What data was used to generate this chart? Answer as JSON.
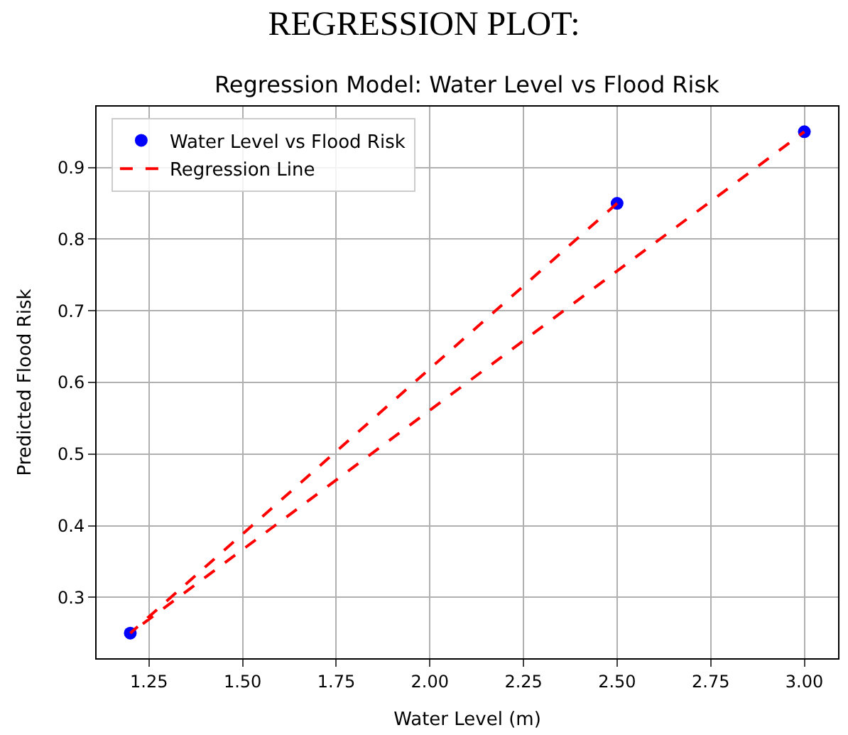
{
  "chart_data": {
    "type": "scatter",
    "title": "REGRESSION PLOT:",
    "subtitle": "Regression Model: Water Level vs Flood Risk",
    "xlabel": "Water Level (m)",
    "ylabel": "Predicted Flood Risk",
    "series": [
      {
        "name": "Water Level vs Flood Risk",
        "color": "#0000ff",
        "marker": "circle",
        "x": [
          1.2,
          2.5,
          3.0
        ],
        "values": [
          0.25,
          0.85,
          0.95
        ]
      },
      {
        "name": "Regression Line",
        "type": "line",
        "color": "#ff0000",
        "line_style": "dashed",
        "x": [
          2.5,
          1.2,
          3.0
        ],
        "values": [
          0.85,
          0.25,
          0.95
        ]
      }
    ],
    "xlim": [
      1.11,
      3.09
    ],
    "xticks": [
      {
        "value": 1.25,
        "label": "1.25"
      },
      {
        "value": 1.5,
        "label": "1.50"
      },
      {
        "value": 1.75,
        "label": "1.75"
      },
      {
        "value": 2.0,
        "label": "2.00"
      },
      {
        "value": 2.25,
        "label": "2.25"
      },
      {
        "value": 2.5,
        "label": "2.50"
      },
      {
        "value": 2.75,
        "label": "2.75"
      },
      {
        "value": 3.0,
        "label": "3.00"
      }
    ],
    "ylim": [
      0.215,
      0.985
    ],
    "yticks": [
      0.3,
      0.4,
      0.5,
      0.6,
      0.7,
      0.8,
      0.9
    ],
    "grid": true,
    "legend": "top left"
  }
}
